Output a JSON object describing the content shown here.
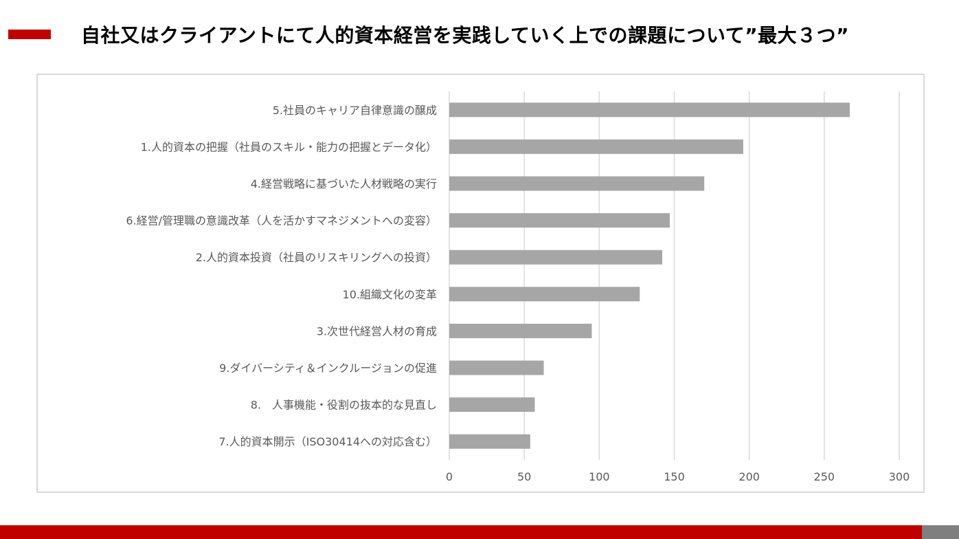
{
  "slide": {
    "title": "自社又はクライアントにて人的資本経営を実践していく上での課題について”最大３つ”"
  },
  "colors": {
    "accent": "#c00000",
    "bar": "#a6a6a6",
    "grid": "#d9d9d9",
    "footer_gray": "#7f7f7f",
    "label_text": "#595959"
  },
  "chart_data": {
    "type": "bar",
    "orientation": "horizontal",
    "categories": [
      "5.社員のキャリア自律意識の醸成",
      "1.人的資本の把握（社員のスキル・能力の把握とデータ化）",
      "4.経営戦略に基づいた人材戦略の実行",
      "6.経営/管理職の意識改革（人を活かすマネジメントへの変容）",
      "2.人的資本投資（社員のリスキリングへの投資）",
      "10.組織文化の変革",
      "3.次世代経営人材の育成",
      "9.ダイバーシティ＆インクルージョンの促進",
      "8.　人事機能・役割の抜本的な見直し",
      "7.人的資本開示（ISO30414への対応含む）"
    ],
    "values": [
      267,
      196,
      170,
      147,
      142,
      127,
      95,
      63,
      57,
      54
    ],
    "xlim": [
      0,
      300
    ],
    "xticks": [
      0,
      50,
      100,
      150,
      200,
      250,
      300
    ],
    "grid": true,
    "legend": "none",
    "title": "",
    "xlabel": "",
    "ylabel": ""
  }
}
